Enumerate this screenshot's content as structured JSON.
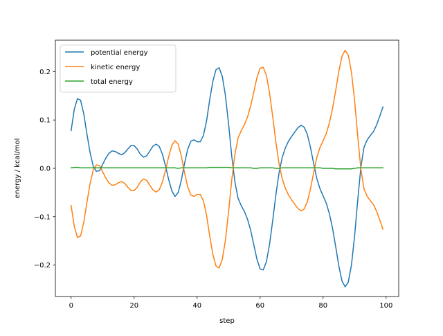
{
  "chart_data": {
    "type": "line",
    "title": "",
    "xlabel": "step",
    "ylabel": "energy / kcal/mol",
    "xlim": [
      -5,
      104
    ],
    "ylim": [
      -0.265,
      0.265
    ],
    "xticks": [
      0,
      20,
      40,
      60,
      80,
      100
    ],
    "yticks": [
      -0.2,
      -0.1,
      0.0,
      0.1,
      0.2
    ],
    "ytick_labels": [
      "−0.2",
      "−0.1",
      "0.0",
      "0.1",
      "0.2"
    ],
    "grid": false,
    "legend": "top-left",
    "x": [
      0,
      1,
      2,
      3,
      4,
      5,
      6,
      7,
      8,
      9,
      10,
      11,
      12,
      13,
      14,
      15,
      16,
      17,
      18,
      19,
      20,
      21,
      22,
      23,
      24,
      25,
      26,
      27,
      28,
      29,
      30,
      31,
      32,
      33,
      34,
      35,
      36,
      37,
      38,
      39,
      40,
      41,
      42,
      43,
      44,
      45,
      46,
      47,
      48,
      49,
      50,
      51,
      52,
      53,
      54,
      55,
      56,
      57,
      58,
      59,
      60,
      61,
      62,
      63,
      64,
      65,
      66,
      67,
      68,
      69,
      70,
      71,
      72,
      73,
      74,
      75,
      76,
      77,
      78,
      79,
      80,
      81,
      82,
      83,
      84,
      85,
      86,
      87,
      88,
      89,
      90,
      91,
      92,
      93,
      94,
      95,
      96,
      97,
      98,
      99
    ],
    "series": [
      {
        "name": "potential energy",
        "color": "#1f77b4",
        "values": [
          0.078,
          0.122,
          0.144,
          0.141,
          0.113,
          0.072,
          0.033,
          0.005,
          -0.006,
          -0.005,
          0.008,
          0.021,
          0.031,
          0.036,
          0.035,
          0.031,
          0.028,
          0.032,
          0.04,
          0.047,
          0.047,
          0.04,
          0.029,
          0.023,
          0.026,
          0.036,
          0.046,
          0.05,
          0.045,
          0.029,
          0.004,
          -0.024,
          -0.047,
          -0.058,
          -0.05,
          -0.024,
          0.01,
          0.039,
          0.056,
          0.059,
          0.055,
          0.055,
          0.068,
          0.098,
          0.142,
          0.18,
          0.204,
          0.208,
          0.19,
          0.15,
          0.091,
          0.025,
          -0.028,
          -0.062,
          -0.077,
          -0.089,
          -0.105,
          -0.128,
          -0.158,
          -0.188,
          -0.208,
          -0.21,
          -0.193,
          -0.157,
          -0.108,
          -0.055,
          -0.01,
          0.022,
          0.042,
          0.056,
          0.066,
          0.075,
          0.084,
          0.089,
          0.085,
          0.07,
          0.043,
          0.01,
          -0.021,
          -0.042,
          -0.057,
          -0.072,
          -0.094,
          -0.124,
          -0.162,
          -0.202,
          -0.233,
          -0.245,
          -0.235,
          -0.2,
          -0.14,
          -0.065,
          0.003,
          0.044,
          0.059,
          0.068,
          0.076,
          0.09,
          0.108,
          0.127
        ]
      },
      {
        "name": "kinetic energy",
        "color": "#ff7f0e",
        "values": [
          -0.077,
          -0.12,
          -0.143,
          -0.14,
          -0.112,
          -0.071,
          -0.032,
          -0.004,
          0.007,
          0.006,
          -0.007,
          -0.02,
          -0.03,
          -0.035,
          -0.034,
          -0.03,
          -0.027,
          -0.031,
          -0.039,
          -0.046,
          -0.046,
          -0.039,
          -0.028,
          -0.022,
          -0.025,
          -0.035,
          -0.045,
          -0.049,
          -0.044,
          -0.028,
          -0.003,
          0.025,
          0.048,
          0.057,
          0.05,
          0.025,
          -0.009,
          -0.038,
          -0.055,
          -0.058,
          -0.054,
          -0.054,
          -0.067,
          -0.097,
          -0.14,
          -0.178,
          -0.202,
          -0.206,
          -0.188,
          -0.148,
          -0.089,
          -0.024,
          0.029,
          0.063,
          0.078,
          0.09,
          0.106,
          0.129,
          0.158,
          0.188,
          0.207,
          0.209,
          0.192,
          0.156,
          0.107,
          0.055,
          0.01,
          -0.021,
          -0.041,
          -0.055,
          -0.065,
          -0.074,
          -0.083,
          -0.088,
          -0.084,
          -0.069,
          -0.042,
          -0.009,
          0.022,
          0.043,
          0.057,
          0.072,
          0.094,
          0.124,
          0.161,
          0.201,
          0.232,
          0.244,
          0.234,
          0.199,
          0.14,
          0.066,
          -0.002,
          -0.043,
          -0.058,
          -0.067,
          -0.075,
          -0.089,
          -0.107,
          -0.126
        ]
      },
      {
        "name": "total energy",
        "color": "#2ca02c",
        "values": [
          0.001,
          0.002,
          0.002,
          0.001,
          0.001,
          0.001,
          0.001,
          0.001,
          0.001,
          0.001,
          0.001,
          0.001,
          0.001,
          0.001,
          0.001,
          0.001,
          0.001,
          0.001,
          0.001,
          0.001,
          0.001,
          0.001,
          0.001,
          0.001,
          0.001,
          0.001,
          0.001,
          0.001,
          0.001,
          0.001,
          0.001,
          0.001,
          0.001,
          0.001,
          0.0,
          0.001,
          0.001,
          0.001,
          0.001,
          0.001,
          0.001,
          0.001,
          0.001,
          0.001,
          0.002,
          0.002,
          0.002,
          0.002,
          0.002,
          0.002,
          0.002,
          0.001,
          0.001,
          0.001,
          0.001,
          0.001,
          0.001,
          0.001,
          0.0,
          0.0,
          0.001,
          0.001,
          0.001,
          0.001,
          0.001,
          0.0,
          0.0,
          0.001,
          0.001,
          0.001,
          0.001,
          0.001,
          0.001,
          0.001,
          0.001,
          0.001,
          0.001,
          0.001,
          0.001,
          0.001,
          0.0,
          0.0,
          0.0,
          0.0,
          -0.001,
          -0.001,
          -0.001,
          -0.001,
          -0.001,
          -0.001,
          0.0,
          0.001,
          0.001,
          0.001,
          0.001,
          0.001,
          0.001,
          0.001,
          0.001,
          0.001
        ]
      }
    ]
  }
}
